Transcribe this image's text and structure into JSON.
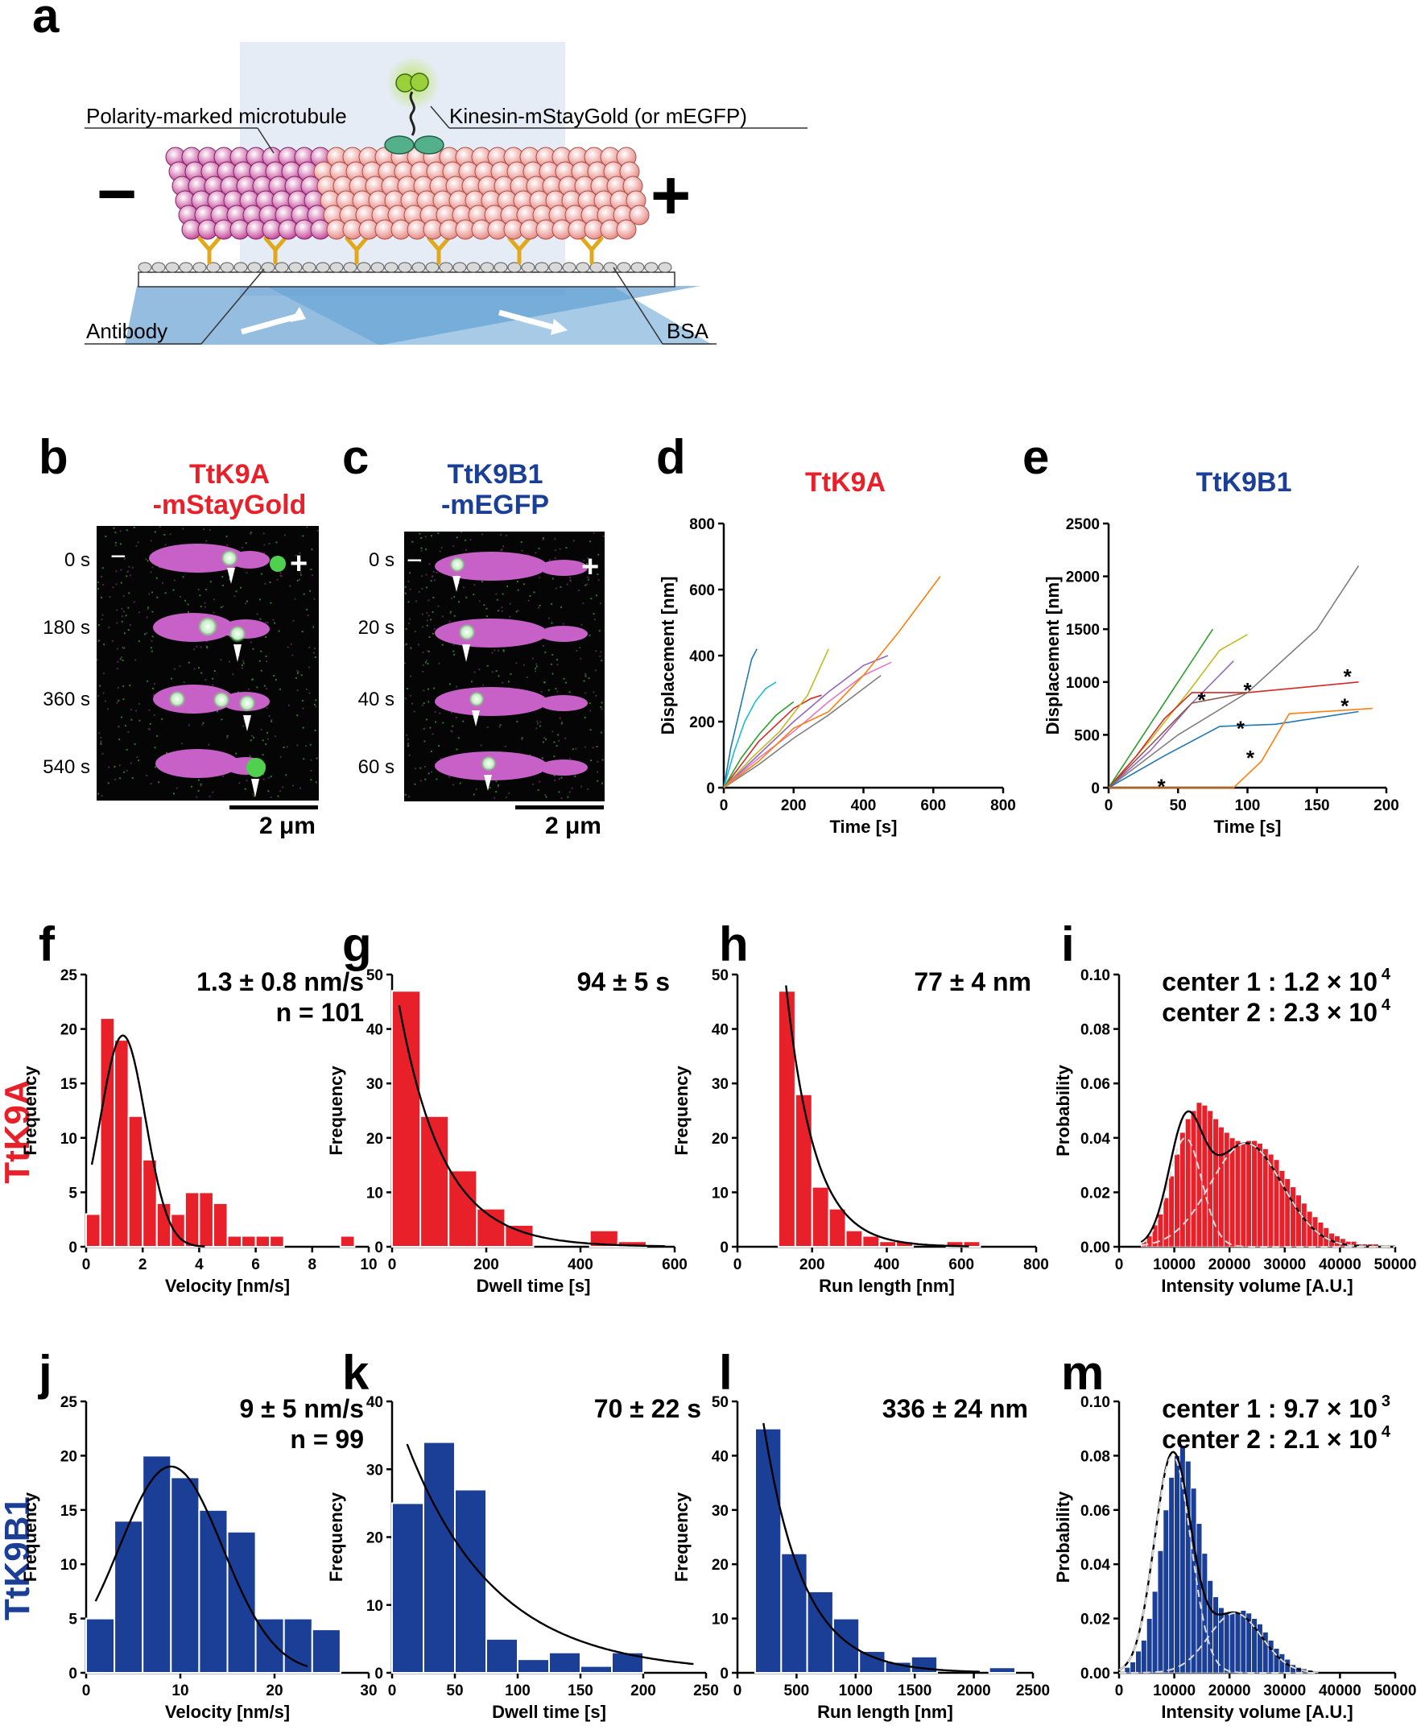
{
  "panels": {
    "a": {
      "letter": "a",
      "labels": {
        "microtubule": "Polarity-marked microtubule",
        "kinesin": "Kinesin-mStayGold (or mEGFP)",
        "minus": "−",
        "plus": "+",
        "antibody": "Antibody",
        "bsa": "BSA"
      }
    },
    "b": {
      "letter": "b",
      "title_line1": "TtK9A",
      "title_line2": "-mStayGold",
      "times": [
        "0 s",
        "180 s",
        "360 s",
        "540 s"
      ],
      "minus": "−",
      "plus": "+",
      "scalebar": "2 μm"
    },
    "c": {
      "letter": "c",
      "title_line1": "TtK9B1",
      "title_line2": "-mEGFP",
      "times": [
        "0 s",
        "20 s",
        "40 s",
        "60 s"
      ],
      "minus": "−",
      "plus": "+",
      "scalebar": "2 μm"
    },
    "d": {
      "letter": "d"
    },
    "e": {
      "letter": "e"
    },
    "f": {
      "letter": "f"
    },
    "g": {
      "letter": "g"
    },
    "h": {
      "letter": "h"
    },
    "i": {
      "letter": "i"
    },
    "j": {
      "letter": "j"
    },
    "k": {
      "letter": "k"
    },
    "l": {
      "letter": "l"
    },
    "m": {
      "letter": "m"
    }
  },
  "row_labels": {
    "ttk9a": "TtK9A",
    "ttk9b1": "TtK9B1"
  },
  "colors": {
    "red": "#e8202a",
    "blue": "#1b3f96",
    "magenta": "#c760c7",
    "green": "#4fd04f",
    "light_blue": "#7fb0de"
  },
  "chart_data": [
    {
      "id": "d",
      "type": "line",
      "title": "TtK9A",
      "title_color": "#e8202a",
      "xlabel": "Time [s]",
      "ylabel": "Displacement [nm]",
      "xlim": [
        0,
        800
      ],
      "ylim": [
        0,
        800
      ],
      "xticks": [
        0,
        200,
        400,
        600,
        800
      ],
      "yticks": [
        0,
        200,
        400,
        600,
        800
      ],
      "series": [
        {
          "name": "trace1",
          "color": "#1f77b4",
          "x": [
            0,
            20,
            40,
            60,
            80,
            95
          ],
          "y": [
            0,
            120,
            210,
            300,
            390,
            420
          ]
        },
        {
          "name": "trace2",
          "color": "#17becf",
          "x": [
            0,
            30,
            60,
            90,
            120,
            150
          ],
          "y": [
            0,
            110,
            200,
            260,
            300,
            320
          ]
        },
        {
          "name": "trace3",
          "color": "#d62728",
          "x": [
            0,
            50,
            100,
            150,
            200,
            250,
            280
          ],
          "y": [
            0,
            70,
            140,
            190,
            240,
            270,
            280
          ]
        },
        {
          "name": "trace4",
          "color": "#2ca02c",
          "x": [
            0,
            50,
            100,
            150,
            200
          ],
          "y": [
            0,
            90,
            160,
            220,
            260
          ]
        },
        {
          "name": "trace5",
          "color": "#bcbd22",
          "x": [
            0,
            80,
            160,
            240,
            300
          ],
          "y": [
            0,
            90,
            170,
            280,
            420
          ]
        },
        {
          "name": "trace6",
          "color": "#9467bd",
          "x": [
            0,
            100,
            200,
            300,
            400,
            470
          ],
          "y": [
            0,
            100,
            200,
            290,
            370,
            400
          ]
        },
        {
          "name": "trace7",
          "color": "#e377c2",
          "x": [
            0,
            100,
            200,
            300,
            400,
            480
          ],
          "y": [
            0,
            90,
            170,
            260,
            340,
            380
          ]
        },
        {
          "name": "trace8",
          "color": "#7f7f7f",
          "x": [
            0,
            100,
            200,
            300,
            400,
            450
          ],
          "y": [
            0,
            70,
            150,
            220,
            300,
            340
          ]
        },
        {
          "name": "trace9",
          "color": "#ff7f0e",
          "x": [
            0,
            100,
            200,
            300,
            400,
            500,
            620
          ],
          "y": [
            0,
            80,
            180,
            230,
            340,
            470,
            640
          ]
        }
      ]
    },
    {
      "id": "e",
      "type": "line",
      "title": "TtK9B1",
      "title_color": "#1b3f96",
      "xlabel": "Time [s]",
      "ylabel": "Displacement [nm]",
      "xlim": [
        0,
        200
      ],
      "ylim": [
        0,
        2500
      ],
      "xticks": [
        0,
        50,
        100,
        150,
        200
      ],
      "yticks": [
        0,
        500,
        1000,
        1500,
        2000,
        2500
      ],
      "marker": "*",
      "series": [
        {
          "name": "t1",
          "color": "#2ca02c",
          "x": [
            0,
            20,
            40,
            60,
            75
          ],
          "y": [
            0,
            400,
            800,
            1200,
            1500
          ]
        },
        {
          "name": "t2",
          "color": "#bcbd22",
          "x": [
            0,
            30,
            60,
            80,
            100
          ],
          "y": [
            0,
            450,
            950,
            1300,
            1450
          ]
        },
        {
          "name": "t3",
          "color": "#9467bd",
          "x": [
            0,
            30,
            60,
            90
          ],
          "y": [
            0,
            350,
            800,
            1200
          ]
        },
        {
          "name": "t4",
          "color": "#d62728",
          "x": [
            0,
            20,
            40,
            60,
            80,
            100,
            140,
            180
          ],
          "y": [
            0,
            300,
            650,
            900,
            900,
            900,
            950,
            1000
          ]
        },
        {
          "name": "t5",
          "color": "#7f7f7f",
          "x": [
            0,
            50,
            100,
            150,
            180
          ],
          "y": [
            0,
            500,
            900,
            1500,
            2100
          ]
        },
        {
          "name": "t6",
          "color": "#1f77b4",
          "x": [
            0,
            40,
            80,
            120,
            180
          ],
          "y": [
            0,
            300,
            580,
            600,
            720
          ]
        },
        {
          "name": "t7",
          "color": "#ff7f0e",
          "x": [
            0,
            90,
            110,
            130,
            190
          ],
          "y": [
            0,
            0,
            250,
            700,
            750
          ]
        },
        {
          "name": "t8",
          "color": "#8c564b",
          "x": [
            0,
            30,
            60,
            100
          ],
          "y": [
            0,
            400,
            800,
            900
          ]
        }
      ],
      "stars": [
        {
          "x": 38,
          "y": 50
        },
        {
          "x": 67,
          "y": 870
        },
        {
          "x": 100,
          "y": 960
        },
        {
          "x": 95,
          "y": 600
        },
        {
          "x": 102,
          "y": 320
        },
        {
          "x": 172,
          "y": 1090
        },
        {
          "x": 170,
          "y": 810
        }
      ]
    },
    {
      "id": "f",
      "type": "bar",
      "color": "#e8202a",
      "xlabel": "Velocity [nm/s]",
      "ylabel": "Frequency",
      "xlim": [
        0,
        10
      ],
      "ylim": [
        0,
        25
      ],
      "xticks": [
        0,
        2,
        4,
        6,
        8,
        10
      ],
      "yticks": [
        0,
        5,
        10,
        15,
        20,
        25
      ],
      "bin_start": 0,
      "bin_width": 0.5,
      "values": [
        3,
        21,
        19,
        12,
        8,
        4,
        3,
        5,
        5,
        4,
        1,
        1,
        1,
        1,
        0,
        0,
        0,
        0,
        1,
        0
      ],
      "annotation": [
        "1.3 ± 0.8 nm/s",
        "n = 101"
      ],
      "fit": {
        "kind": "gauss",
        "mu": 1.3,
        "sigma": 0.8,
        "amp": 19.4,
        "from": 0.2,
        "to": 4.2
      }
    },
    {
      "id": "g",
      "type": "bar",
      "color": "#e8202a",
      "xlabel": "Dwell time [s]",
      "ylabel": "Frequency",
      "xlim": [
        0,
        600
      ],
      "ylim": [
        0,
        50
      ],
      "xticks": [
        0,
        200,
        400,
        600
      ],
      "yticks": [
        0,
        10,
        20,
        30,
        40,
        50
      ],
      "bin_start": 0,
      "bin_width": 60,
      "values": [
        47,
        24,
        14,
        7,
        4,
        0,
        0,
        3,
        1,
        0
      ],
      "annotation": [
        "94 ± 5 s"
      ],
      "fit": {
        "kind": "exp",
        "A": 52,
        "tau": 94,
        "from": 15,
        "to": 580
      }
    },
    {
      "id": "h",
      "type": "bar",
      "color": "#e8202a",
      "xlabel": "Run length [nm]",
      "ylabel": "Frequency",
      "xlim": [
        0,
        800
      ],
      "ylim": [
        0,
        50
      ],
      "xticks": [
        0,
        200,
        400,
        600,
        800
      ],
      "yticks": [
        0,
        10,
        20,
        30,
        40,
        50
      ],
      "bin_start": 110,
      "bin_width": 45,
      "values": [
        47,
        28,
        11,
        7,
        3,
        2,
        1,
        1,
        0,
        0,
        1,
        1
      ],
      "annotation": [
        "77 ± 4 nm"
      ],
      "fit": {
        "kind": "exp",
        "A": 48,
        "tau": 77,
        "x0": 130,
        "from": 130,
        "to": 620
      }
    },
    {
      "id": "i",
      "type": "bar",
      "color": "#e8202a",
      "xlabel": "Intensity volume [A.U.]",
      "ylabel": "Probability",
      "xlim": [
        0,
        50000
      ],
      "ylim": [
        0,
        0.1
      ],
      "xticks": [
        0,
        10000,
        20000,
        30000,
        40000,
        50000
      ],
      "yticks": [
        0.0,
        0.02,
        0.04,
        0.06,
        0.08,
        0.1
      ],
      "bin_start": 4000,
      "bin_width": 1000,
      "values": [
        0.002,
        0.004,
        0.008,
        0.012,
        0.018,
        0.026,
        0.034,
        0.042,
        0.047,
        0.05,
        0.053,
        0.052,
        0.05,
        0.047,
        0.044,
        0.042,
        0.04,
        0.039,
        0.038,
        0.039,
        0.039,
        0.038,
        0.036,
        0.034,
        0.032,
        0.028,
        0.025,
        0.022,
        0.019,
        0.016,
        0.013,
        0.011,
        0.009,
        0.007,
        0.005,
        0.004,
        0.003,
        0.002,
        0.002,
        0.001,
        0.001,
        0.001,
        0.001,
        0.0005,
        0.0005
      ],
      "annotation": [
        "center 1 : 1.2 × 10",
        "center 2 : 2.3 × 10"
      ],
      "annotation_exp": [
        "4",
        "4"
      ],
      "fit": {
        "kind": "gmm",
        "components": [
          {
            "mu": 12000,
            "sigma": 3000,
            "amp": 0.04
          },
          {
            "mu": 23000,
            "sigma": 6500,
            "amp": 0.038
          }
        ],
        "from": 4000,
        "to": 50000
      }
    },
    {
      "id": "j",
      "type": "bar",
      "color": "#1b3f96",
      "xlabel": "Velocity [nm/s]",
      "ylabel": "Frequency",
      "xlim": [
        0,
        30
      ],
      "ylim": [
        0,
        25
      ],
      "xticks": [
        0,
        10,
        20,
        30
      ],
      "yticks": [
        0,
        5,
        10,
        15,
        20,
        25
      ],
      "bin_start": 0,
      "bin_width": 3,
      "values": [
        5,
        14,
        20,
        18,
        15,
        13,
        5,
        5,
        4,
        0
      ],
      "annotation": [
        "9 ± 5 nm/s",
        "n = 99"
      ],
      "fit": {
        "kind": "gauss",
        "mu": 9,
        "sigma": 5.5,
        "amp": 19,
        "from": 1,
        "to": 23.5
      }
    },
    {
      "id": "k",
      "type": "bar",
      "color": "#1b3f96",
      "xlabel": "Dwell time [s]",
      "ylabel": "Frequency",
      "xlim": [
        0,
        250
      ],
      "ylim": [
        0,
        40
      ],
      "xticks": [
        0,
        50,
        100,
        150,
        200,
        250
      ],
      "yticks": [
        0,
        10,
        20,
        30,
        40
      ],
      "bin_start": 0,
      "bin_width": 25,
      "values": [
        25,
        34,
        27,
        5,
        2,
        3,
        1,
        3,
        0,
        0
      ],
      "annotation": [
        "70 ± 22 s"
      ],
      "fit": {
        "kind": "exp",
        "A": 40,
        "tau": 70,
        "from": 12,
        "to": 240
      }
    },
    {
      "id": "l",
      "type": "bar",
      "color": "#1b3f96",
      "xlabel": "Run length [nm]",
      "ylabel": "Frequency",
      "xlim": [
        0,
        2500
      ],
      "ylim": [
        0,
        50
      ],
      "xticks": [
        0,
        500,
        1000,
        1500,
        2000,
        2500
      ],
      "yticks": [
        0,
        10,
        20,
        30,
        40,
        50
      ],
      "bin_start": 150,
      "bin_width": 220,
      "values": [
        45,
        22,
        15,
        10,
        4,
        2,
        3,
        0,
        0,
        1
      ],
      "annotation": [
        "336 ± 24 nm"
      ],
      "fit": {
        "kind": "exp",
        "A": 46,
        "tau": 336,
        "x0": 220,
        "from": 220,
        "to": 2050
      }
    },
    {
      "id": "m",
      "type": "bar",
      "color": "#1b3f96",
      "xlabel": "Intensity volume [A.U.]",
      "ylabel": "Probability",
      "xlim": [
        0,
        50000
      ],
      "ylim": [
        0,
        0.1
      ],
      "xticks": [
        0,
        10000,
        20000,
        30000,
        40000,
        50000
      ],
      "yticks": [
        0.0,
        0.02,
        0.04,
        0.06,
        0.08,
        0.1
      ],
      "bin_start": 1000,
      "bin_width": 1000,
      "values": [
        0.002,
        0.004,
        0.008,
        0.012,
        0.02,
        0.03,
        0.045,
        0.06,
        0.072,
        0.08,
        0.083,
        0.078,
        0.068,
        0.055,
        0.044,
        0.034,
        0.028,
        0.024,
        0.022,
        0.022,
        0.022,
        0.023,
        0.022,
        0.02,
        0.018,
        0.015,
        0.012,
        0.009,
        0.007,
        0.005,
        0.003,
        0.002,
        0.0015,
        0.001,
        0.0005
      ],
      "annotation": [
        "center 1 : 9.7 × 10",
        "center 2 : 2.1 × 10"
      ],
      "annotation_exp": [
        "3",
        "4"
      ],
      "fit": {
        "kind": "gmm",
        "components": [
          {
            "mu": 9700,
            "sigma": 3300,
            "amp": 0.08
          },
          {
            "mu": 21000,
            "sigma": 4800,
            "amp": 0.022
          }
        ],
        "from": 0,
        "to": 36000
      }
    }
  ]
}
